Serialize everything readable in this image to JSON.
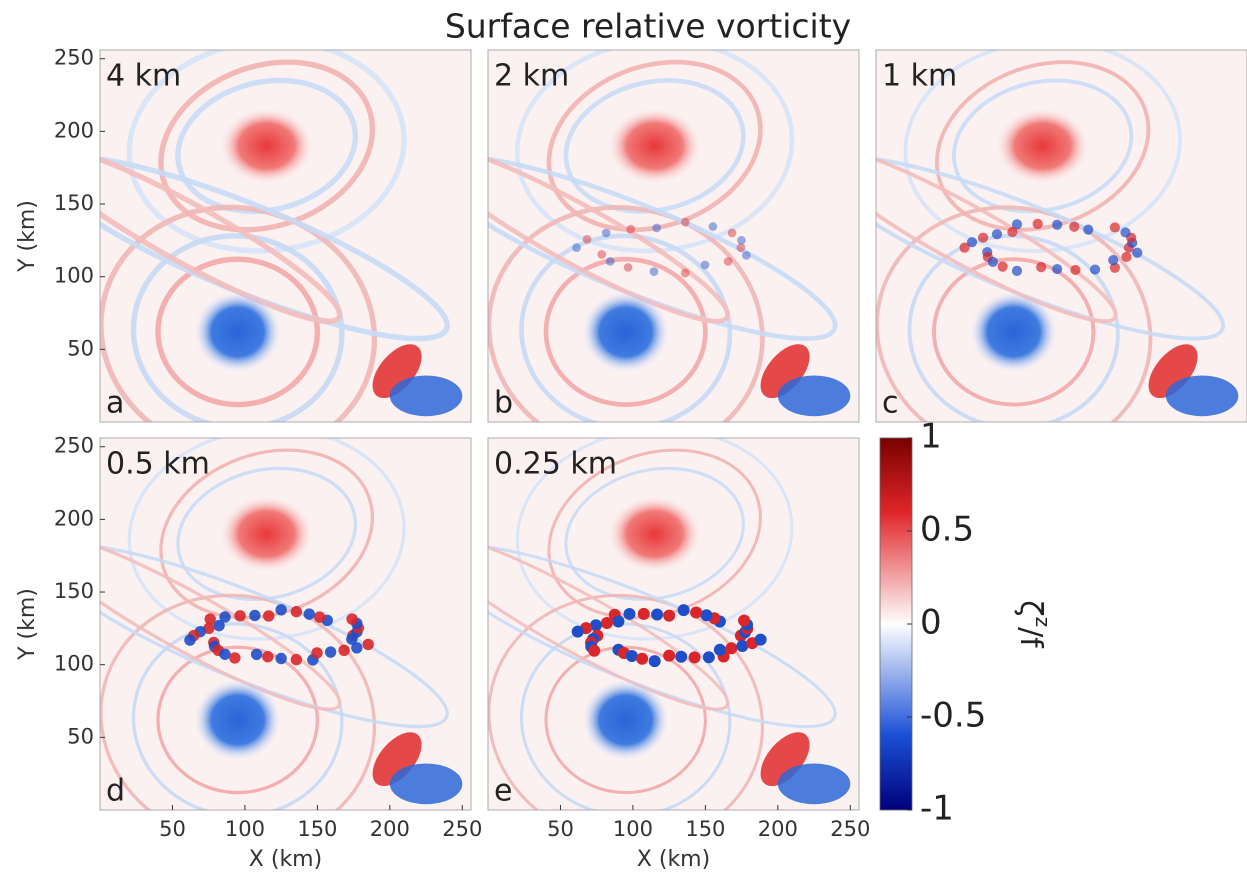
{
  "title": "Surface relative vorticity",
  "chart_data": [
    {
      "type": "heatmap",
      "title": "4 km",
      "panel": "a",
      "xlim": [
        0,
        256
      ],
      "ylim": [
        0,
        256
      ],
      "yticks": [
        50,
        100,
        150,
        200,
        250
      ],
      "ylabel": "Y (km)"
    },
    {
      "type": "heatmap",
      "title": "2 km",
      "panel": "b",
      "xlim": [
        0,
        256
      ],
      "ylim": [
        0,
        256
      ]
    },
    {
      "type": "heatmap",
      "title": "1 km",
      "panel": "c",
      "xlim": [
        0,
        256
      ],
      "ylim": [
        0,
        256
      ]
    },
    {
      "type": "heatmap",
      "title": "0.5 km",
      "panel": "d",
      "xlim": [
        0,
        256
      ],
      "ylim": [
        0,
        256
      ],
      "xticks": [
        50,
        100,
        150,
        200,
        250
      ],
      "yticks": [
        50,
        100,
        150,
        200,
        250
      ],
      "xlabel": "X (km)",
      "ylabel": "Y (km)"
    },
    {
      "type": "heatmap",
      "title": "0.25 km",
      "panel": "e",
      "xlim": [
        0,
        256
      ],
      "ylim": [
        0,
        256
      ],
      "xticks": [
        50,
        100,
        150,
        200,
        250
      ],
      "xlabel": "X (km)"
    }
  ],
  "colorbar": {
    "lim": [
      -1,
      1
    ],
    "ticks": [
      -1,
      -0.5,
      0,
      0.5,
      1
    ],
    "label_parts": [
      "ζ",
      "z",
      "/f"
    ]
  }
}
